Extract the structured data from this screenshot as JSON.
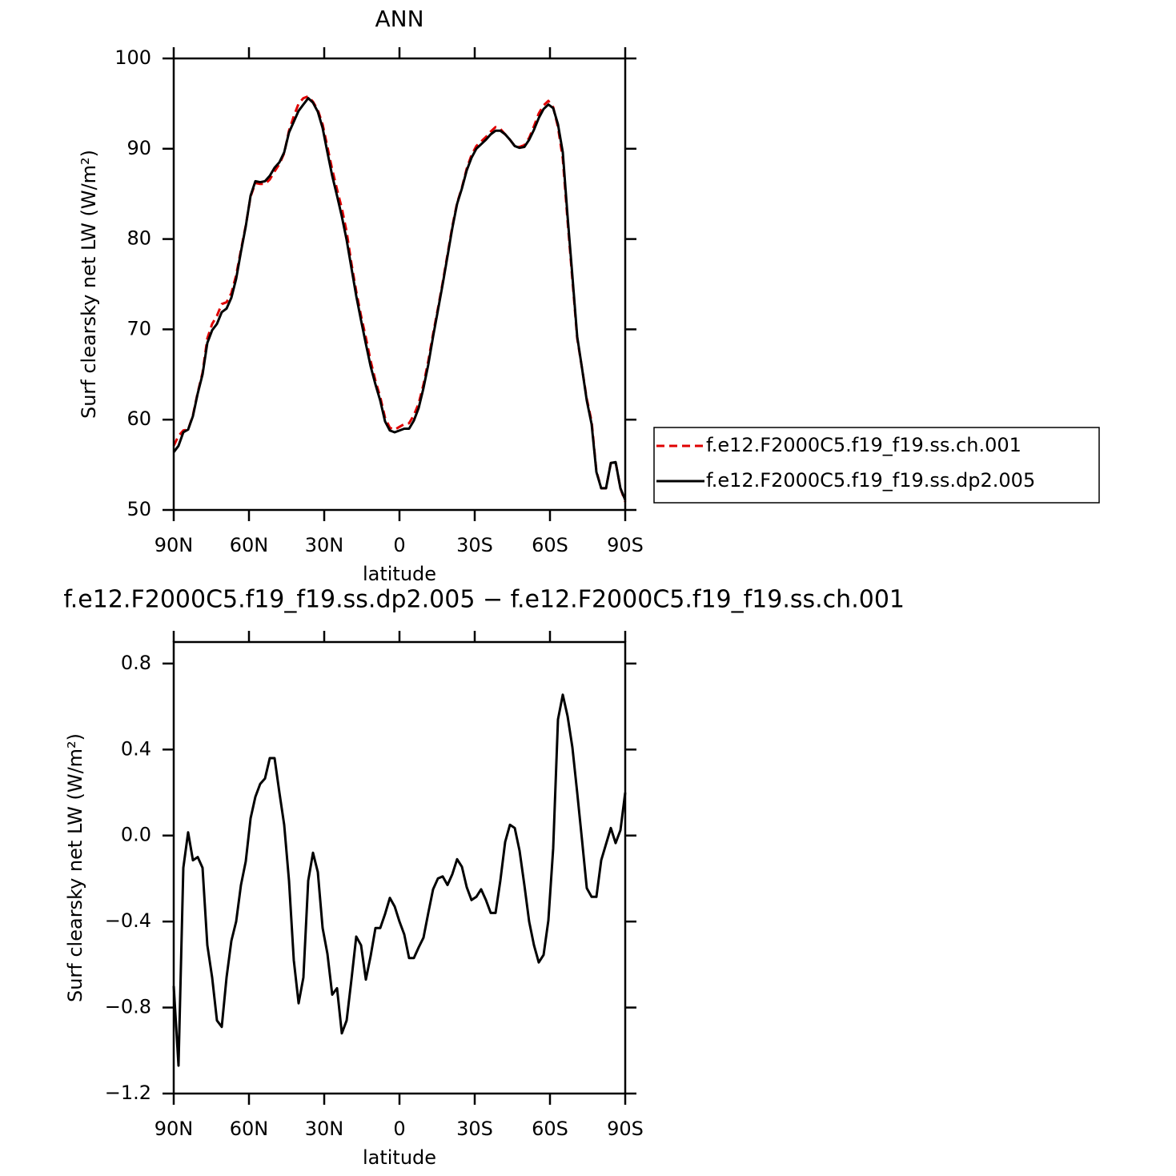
{
  "chart_data": [
    {
      "type": "line",
      "title": "ANN",
      "xlabel": "latitude",
      "ylabel": "Surf clearsky net LW (W/m²)",
      "x": [
        90,
        88.09,
        86.17,
        84.26,
        82.34,
        80.43,
        78.51,
        76.6,
        74.68,
        72.77,
        70.85,
        68.94,
        67.02,
        65.11,
        63.19,
        61.28,
        59.36,
        57.45,
        55.53,
        53.62,
        51.7,
        49.79,
        47.87,
        45.96,
        44.04,
        42.13,
        40.21,
        38.3,
        36.38,
        34.47,
        32.55,
        30.64,
        28.72,
        26.81,
        24.89,
        22.98,
        21.06,
        19.15,
        17.23,
        15.32,
        13.4,
        11.49,
        9.57,
        7.66,
        5.74,
        3.83,
        1.91,
        0,
        -1.91,
        -3.83,
        -5.74,
        -7.66,
        -9.57,
        -11.49,
        -13.4,
        -15.32,
        -17.23,
        -19.15,
        -21.06,
        -22.98,
        -24.89,
        -26.81,
        -28.72,
        -30.64,
        -32.55,
        -34.47,
        -36.38,
        -38.3,
        -40.21,
        -42.13,
        -44.04,
        -45.96,
        -47.87,
        -49.79,
        -51.7,
        -53.62,
        -55.53,
        -57.45,
        -59.36,
        -61.28,
        -63.19,
        -65.11,
        -67.02,
        -68.94,
        -70.85,
        -72.77,
        -74.68,
        -76.6,
        -78.51,
        -80.43,
        -82.34,
        -84.26,
        -86.17,
        -88.09,
        -90
      ],
      "series": [
        {
          "name": "f.e12.F2000C5.f19_f19.ss.ch.001",
          "color": "#e00000",
          "linestyle": "dashed",
          "values": [
            57.1,
            58.2,
            58.8,
            58.9,
            60.5,
            63.0,
            65.2,
            69.0,
            70.6,
            71.5,
            72.8,
            73.0,
            74.0,
            76.0,
            78.8,
            81.5,
            84.7,
            86.2,
            86.1,
            86.1,
            86.6,
            87.5,
            88.3,
            89.5,
            92.0,
            93.6,
            95.0,
            95.6,
            95.8,
            95.2,
            94.3,
            92.7,
            90.2,
            87.7,
            85.5,
            83.4,
            80.8,
            77.3,
            74.2,
            71.5,
            69.1,
            66.5,
            64.3,
            62.5,
            60.2,
            59.1,
            58.9,
            59.2,
            59.5,
            59.6,
            60.5,
            61.8,
            63.9,
            66.5,
            69.5,
            72.3,
            75.2,
            78.3,
            81.4,
            84.0,
            85.7,
            87.8,
            89.3,
            90.3,
            90.8,
            91.3,
            91.9,
            92.4,
            92.2,
            91.6,
            91.0,
            90.3,
            90.2,
            90.4,
            91.2,
            92.5,
            93.9,
            94.8,
            95.3,
            94.6,
            92.4,
            88.9,
            82.0,
            75.5,
            69.0,
            65.7,
            62.3,
            59.8,
            54.3,
            52.4,
            52.4,
            55.2,
            55.3,
            52.4,
            50.9
          ]
        },
        {
          "name": "f.e12.F2000C5.f19_f19.ss.dp2.005",
          "color": "#000000",
          "linestyle": "solid",
          "values": [
            56.4,
            57.1,
            58.6,
            58.9,
            60.4,
            62.9,
            65.0,
            68.5,
            69.9,
            70.6,
            71.9,
            72.3,
            73.5,
            75.6,
            78.6,
            81.4,
            84.8,
            86.4,
            86.3,
            86.4,
            87.0,
            87.9,
            88.5,
            89.6,
            91.8,
            93.0,
            94.2,
            94.9,
            95.6,
            95.1,
            94.1,
            92.3,
            89.6,
            87.0,
            84.8,
            82.5,
            79.9,
            76.8,
            73.7,
            71.0,
            68.4,
            65.9,
            63.9,
            62.1,
            59.8,
            58.8,
            58.6,
            58.8,
            59.0,
            59.0,
            59.9,
            61.3,
            63.5,
            66.1,
            69.2,
            72.1,
            75.0,
            78.1,
            81.2,
            83.9,
            85.6,
            87.6,
            89.0,
            90.0,
            90.5,
            91.0,
            91.6,
            92.0,
            92.0,
            91.6,
            91.0,
            90.3,
            90.1,
            90.2,
            91.0,
            92.1,
            93.4,
            94.4,
            94.9,
            94.5,
            92.7,
            89.6,
            82.5,
            75.9,
            69.2,
            65.7,
            62.1,
            59.5,
            54.2,
            52.4,
            52.4,
            55.2,
            55.3,
            52.4,
            51.1
          ]
        }
      ],
      "xlim": [
        90,
        -90
      ],
      "xticks": [
        {
          "value": 90,
          "label": "90N"
        },
        {
          "value": 60,
          "label": "60N"
        },
        {
          "value": 30,
          "label": "30N"
        },
        0,
        {
          "value": -30,
          "label": "30S"
        },
        {
          "value": -60,
          "label": "60S"
        },
        {
          "value": -90,
          "label": "90S"
        }
      ],
      "ylim": [
        50,
        100
      ],
      "yticks": [
        50,
        60,
        70,
        80,
        90,
        100
      ],
      "legend": "right"
    },
    {
      "type": "line",
      "title": "f.e12.F2000C5.f19_f19.ss.dp2.005 − f.e12.F2000C5.f19_f19.ss.ch.001",
      "xlabel": "latitude",
      "ylabel": "Surf clearsky net LW (W/m²)",
      "x": [
        90,
        88.09,
        86.17,
        84.26,
        82.34,
        80.43,
        78.51,
        76.6,
        74.68,
        72.77,
        70.85,
        68.94,
        67.02,
        65.11,
        63.19,
        61.28,
        59.36,
        57.45,
        55.53,
        53.62,
        51.7,
        49.79,
        47.87,
        45.96,
        44.04,
        42.13,
        40.21,
        38.3,
        36.38,
        34.47,
        32.55,
        30.64,
        28.72,
        26.81,
        24.89,
        22.98,
        21.06,
        19.15,
        17.23,
        15.32,
        13.4,
        11.49,
        9.57,
        7.66,
        5.74,
        3.83,
        1.91,
        0,
        -1.91,
        -3.83,
        -5.74,
        -7.66,
        -9.57,
        -11.49,
        -13.4,
        -15.32,
        -17.23,
        -19.15,
        -21.06,
        -22.98,
        -24.89,
        -26.81,
        -28.72,
        -30.64,
        -32.55,
        -34.47,
        -36.38,
        -38.3,
        -40.21,
        -42.13,
        -44.04,
        -45.96,
        -47.87,
        -49.79,
        -51.7,
        -53.62,
        -55.53,
        -57.45,
        -59.36,
        -61.28,
        -63.19,
        -65.11,
        -67.02,
        -68.94,
        -70.85,
        -72.77,
        -74.68,
        -76.6,
        -78.51,
        -80.43,
        -82.34,
        -84.26,
        -86.17,
        -88.09,
        -90
      ],
      "series": [
        {
          "color": "#000000",
          "linestyle": "solid",
          "values": [
            -0.7,
            -1.07,
            -0.15,
            0.015,
            -0.115,
            -0.1,
            -0.15,
            -0.51,
            -0.66,
            -0.86,
            -0.89,
            -0.66,
            -0.49,
            -0.4,
            -0.23,
            -0.12,
            0.08,
            0.18,
            0.24,
            0.265,
            0.36,
            0.36,
            0.2,
            0.05,
            -0.21,
            -0.58,
            -0.78,
            -0.66,
            -0.21,
            -0.08,
            -0.17,
            -0.43,
            -0.55,
            -0.74,
            -0.71,
            -0.92,
            -0.86,
            -0.67,
            -0.47,
            -0.51,
            -0.67,
            -0.56,
            -0.43,
            -0.43,
            -0.365,
            -0.29,
            -0.33,
            -0.4,
            -0.46,
            -0.57,
            -0.57,
            -0.52,
            -0.475,
            -0.36,
            -0.25,
            -0.2,
            -0.19,
            -0.23,
            -0.18,
            -0.11,
            -0.145,
            -0.24,
            -0.3,
            -0.285,
            -0.25,
            -0.3,
            -0.36,
            -0.36,
            -0.21,
            -0.03,
            0.05,
            0.035,
            -0.07,
            -0.23,
            -0.4,
            -0.51,
            -0.59,
            -0.555,
            -0.395,
            -0.06,
            0.54,
            0.655,
            0.555,
            0.41,
            0.2,
            -0.02,
            -0.245,
            -0.285,
            -0.285,
            -0.115,
            -0.04,
            0.035,
            -0.035,
            0.025,
            0.2
          ]
        }
      ],
      "xlim": [
        90,
        -90
      ],
      "xticks": [
        {
          "value": 90,
          "label": "90N"
        },
        {
          "value": 60,
          "label": "60N"
        },
        {
          "value": 30,
          "label": "30N"
        },
        0,
        {
          "value": -30,
          "label": "30S"
        },
        {
          "value": -60,
          "label": "60S"
        },
        {
          "value": -90,
          "label": "90S"
        }
      ],
      "ylim": [
        -1.2,
        0.9
      ],
      "yticks": [
        {
          "value": -1.2,
          "label": "−1.2"
        },
        {
          "value": -0.8,
          "label": "−0.8"
        },
        {
          "value": -0.4,
          "label": "−0.4"
        },
        {
          "value": 0,
          "label": "0.0"
        },
        0.4,
        0.8
      ]
    }
  ]
}
